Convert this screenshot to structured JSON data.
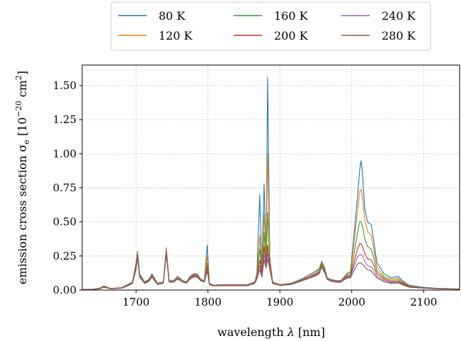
{
  "chart_data": {
    "type": "line",
    "xlabel": "wavelength λ [nm]",
    "ylabel": "emission cross section σe [10−20 cm2]",
    "ylabel_parts": {
      "main": "emission cross section σ",
      "sub": "e",
      "bracket_open": " [10",
      "sup1": "−20",
      "mid": " cm",
      "sup2": "2",
      "bracket_close": "]"
    },
    "xlim": [
      1625,
      2150
    ],
    "ylim": [
      0,
      1.65
    ],
    "x_ticks": [
      1700,
      1800,
      1900,
      2000,
      2100
    ],
    "y_ticks": [
      0.0,
      0.25,
      0.5,
      0.75,
      1.0,
      1.25,
      1.5
    ],
    "x_tick_labels": [
      "1700",
      "1800",
      "1900",
      "2000",
      "2100"
    ],
    "y_tick_labels": [
      "0.00",
      "0.25",
      "0.50",
      "0.75",
      "1.00",
      "1.25",
      "1.50"
    ],
    "grid": true,
    "legend_position": "top-center",
    "legend_columns": 3,
    "x": [
      1625,
      1640,
      1650,
      1655,
      1665,
      1680,
      1688,
      1695,
      1700,
      1702,
      1705,
      1712,
      1718,
      1722,
      1730,
      1738,
      1742,
      1746,
      1752,
      1758,
      1765,
      1770,
      1775,
      1780,
      1785,
      1790,
      1795,
      1799,
      1802,
      1808,
      1815,
      1825,
      1840,
      1855,
      1865,
      1868,
      1872,
      1875,
      1878,
      1881,
      1883,
      1886,
      1890,
      1900,
      1915,
      1930,
      1940,
      1950,
      1955,
      1958,
      1962,
      1966,
      1970,
      1978,
      1985,
      1990,
      1995,
      1998,
      2003,
      2008,
      2011,
      2013,
      2015,
      2018,
      2022,
      2027,
      2030,
      2035,
      2045,
      2055,
      2065,
      2070,
      2080,
      2100,
      2120,
      2150
    ],
    "series": [
      {
        "name": "80 K",
        "color": "#1f77b4",
        "values": [
          0.004,
          0.006,
          0.015,
          0.03,
          0.012,
          0.018,
          0.04,
          0.06,
          0.2,
          0.285,
          0.12,
          0.06,
          0.08,
          0.12,
          0.05,
          0.06,
          0.31,
          0.07,
          0.07,
          0.1,
          0.07,
          0.06,
          0.1,
          0.12,
          0.12,
          0.08,
          0.07,
          0.33,
          0.05,
          0.035,
          0.04,
          0.04,
          0.04,
          0.04,
          0.06,
          0.12,
          0.7,
          0.14,
          0.78,
          0.25,
          1.56,
          0.24,
          0.06,
          0.04,
          0.05,
          0.08,
          0.11,
          0.14,
          0.16,
          0.21,
          0.17,
          0.09,
          0.08,
          0.07,
          0.07,
          0.1,
          0.13,
          0.13,
          0.4,
          0.68,
          0.88,
          0.95,
          0.86,
          0.6,
          0.5,
          0.48,
          0.38,
          0.2,
          0.12,
          0.09,
          0.1,
          0.07,
          0.035,
          0.02,
          0.013,
          0.008
        ]
      },
      {
        "name": "120 K",
        "color": "#ff7f0e",
        "values": [
          0.004,
          0.006,
          0.014,
          0.028,
          0.012,
          0.017,
          0.038,
          0.058,
          0.19,
          0.275,
          0.115,
          0.058,
          0.077,
          0.115,
          0.048,
          0.058,
          0.3,
          0.068,
          0.068,
          0.095,
          0.068,
          0.06,
          0.095,
          0.115,
          0.115,
          0.078,
          0.068,
          0.25,
          0.048,
          0.034,
          0.038,
          0.038,
          0.038,
          0.038,
          0.058,
          0.11,
          0.4,
          0.13,
          0.56,
          0.23,
          1.0,
          0.22,
          0.058,
          0.04,
          0.048,
          0.075,
          0.1,
          0.13,
          0.15,
          0.2,
          0.16,
          0.088,
          0.077,
          0.067,
          0.067,
          0.095,
          0.12,
          0.12,
          0.34,
          0.58,
          0.72,
          0.74,
          0.68,
          0.52,
          0.43,
          0.4,
          0.32,
          0.17,
          0.1,
          0.08,
          0.085,
          0.062,
          0.03,
          0.018,
          0.012,
          0.008
        ]
      },
      {
        "name": "160 K",
        "color": "#2ca02c",
        "values": [
          0.004,
          0.005,
          0.013,
          0.026,
          0.011,
          0.016,
          0.036,
          0.055,
          0.18,
          0.265,
          0.11,
          0.055,
          0.073,
          0.11,
          0.046,
          0.056,
          0.29,
          0.065,
          0.065,
          0.09,
          0.065,
          0.057,
          0.09,
          0.11,
          0.11,
          0.075,
          0.065,
          0.2,
          0.046,
          0.033,
          0.036,
          0.036,
          0.036,
          0.036,
          0.055,
          0.1,
          0.3,
          0.12,
          0.42,
          0.2,
          0.57,
          0.19,
          0.055,
          0.038,
          0.046,
          0.072,
          0.095,
          0.12,
          0.14,
          0.19,
          0.15,
          0.085,
          0.074,
          0.064,
          0.064,
          0.09,
          0.11,
          0.11,
          0.26,
          0.42,
          0.5,
          0.5,
          0.47,
          0.38,
          0.32,
          0.3,
          0.25,
          0.14,
          0.09,
          0.07,
          0.075,
          0.055,
          0.028,
          0.017,
          0.011,
          0.007
        ]
      },
      {
        "name": "200 K",
        "color": "#d62728",
        "values": [
          0.003,
          0.005,
          0.012,
          0.024,
          0.01,
          0.015,
          0.034,
          0.052,
          0.17,
          0.255,
          0.105,
          0.052,
          0.07,
          0.105,
          0.044,
          0.054,
          0.28,
          0.062,
          0.062,
          0.086,
          0.062,
          0.054,
          0.086,
          0.105,
          0.105,
          0.072,
          0.062,
          0.17,
          0.044,
          0.032,
          0.034,
          0.034,
          0.034,
          0.034,
          0.052,
          0.09,
          0.22,
          0.11,
          0.32,
          0.18,
          0.33,
          0.17,
          0.052,
          0.036,
          0.044,
          0.07,
          0.09,
          0.115,
          0.13,
          0.18,
          0.14,
          0.082,
          0.071,
          0.061,
          0.061,
          0.085,
          0.1,
          0.1,
          0.2,
          0.3,
          0.34,
          0.34,
          0.32,
          0.27,
          0.23,
          0.22,
          0.19,
          0.12,
          0.08,
          0.06,
          0.065,
          0.048,
          0.025,
          0.016,
          0.01,
          0.007
        ]
      },
      {
        "name": "240 K",
        "color": "#9467bd",
        "values": [
          0.003,
          0.005,
          0.011,
          0.022,
          0.01,
          0.014,
          0.032,
          0.05,
          0.16,
          0.245,
          0.1,
          0.05,
          0.067,
          0.1,
          0.042,
          0.052,
          0.27,
          0.06,
          0.06,
          0.083,
          0.06,
          0.052,
          0.083,
          0.1,
          0.1,
          0.07,
          0.06,
          0.15,
          0.042,
          0.031,
          0.032,
          0.032,
          0.032,
          0.032,
          0.05,
          0.085,
          0.18,
          0.1,
          0.26,
          0.17,
          0.27,
          0.16,
          0.05,
          0.035,
          0.042,
          0.068,
          0.088,
          0.11,
          0.125,
          0.175,
          0.135,
          0.08,
          0.069,
          0.059,
          0.059,
          0.082,
          0.095,
          0.095,
          0.17,
          0.24,
          0.26,
          0.26,
          0.25,
          0.21,
          0.18,
          0.17,
          0.15,
          0.1,
          0.07,
          0.055,
          0.058,
          0.043,
          0.022,
          0.015,
          0.01,
          0.006
        ]
      },
      {
        "name": "280 K",
        "color": "#8c564b",
        "values": [
          0.003,
          0.004,
          0.01,
          0.02,
          0.009,
          0.013,
          0.03,
          0.048,
          0.15,
          0.235,
          0.095,
          0.048,
          0.064,
          0.095,
          0.04,
          0.05,
          0.26,
          0.058,
          0.058,
          0.08,
          0.058,
          0.05,
          0.08,
          0.095,
          0.095,
          0.068,
          0.058,
          0.14,
          0.04,
          0.03,
          0.031,
          0.031,
          0.031,
          0.031,
          0.048,
          0.08,
          0.15,
          0.095,
          0.22,
          0.16,
          0.23,
          0.15,
          0.048,
          0.034,
          0.04,
          0.066,
          0.085,
          0.105,
          0.12,
          0.17,
          0.13,
          0.078,
          0.067,
          0.057,
          0.057,
          0.078,
          0.09,
          0.09,
          0.14,
          0.19,
          0.2,
          0.2,
          0.19,
          0.17,
          0.15,
          0.14,
          0.12,
          0.09,
          0.06,
          0.05,
          0.052,
          0.04,
          0.02,
          0.014,
          0.009,
          0.006
        ]
      }
    ]
  }
}
